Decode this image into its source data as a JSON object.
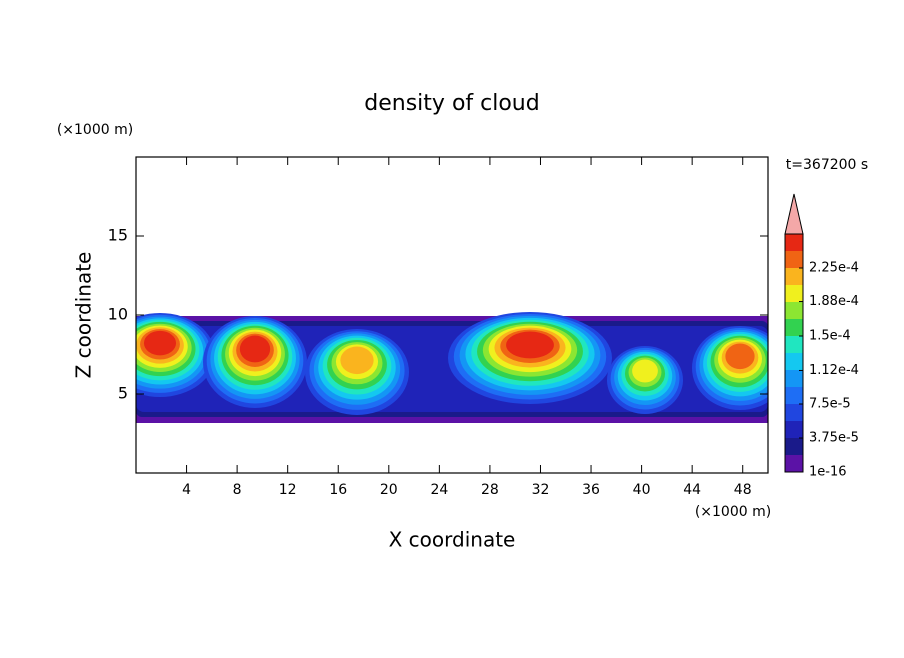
{
  "chart_data": {
    "type": "contour",
    "title": "density of cloud",
    "x_label": "X coordinate",
    "y_label": "Z coordinate",
    "x_unit": "(×1000 m)",
    "y_unit": "(×1000 m)",
    "time_label": "t=367200 s",
    "xlim": [
      0,
      50
    ],
    "ylim": [
      0,
      20
    ],
    "xticks": [
      4,
      8,
      12,
      16,
      20,
      24,
      28,
      32,
      36,
      40,
      44,
      48
    ],
    "yticks": [
      5,
      10,
      15
    ],
    "colorbar": {
      "clim": [
        1e-16,
        0.0002625
      ],
      "colors": [
        "#5b12a6",
        "#1a1a8a",
        "#1f23b8",
        "#2046e0",
        "#1e6ef5",
        "#1496f5",
        "#14c8f0",
        "#20e6c0",
        "#32d250",
        "#8ce632",
        "#f0f01e",
        "#fab41e",
        "#f06414",
        "#e62814"
      ],
      "extend_color": "#f4a8a8",
      "ticks": [
        {
          "value": 1e-16,
          "label": "1e-16"
        },
        {
          "value": 3.75e-05,
          "label": "3.75e-5"
        },
        {
          "value": 7.5e-05,
          "label": "7.5e-5"
        },
        {
          "value": 0.000112,
          "label": "1.12e-4"
        },
        {
          "value": 0.00015,
          "label": "1.5e-4"
        },
        {
          "value": 0.000188,
          "label": "1.88e-4"
        },
        {
          "value": 0.000225,
          "label": "2.25e-4"
        }
      ]
    }
  }
}
